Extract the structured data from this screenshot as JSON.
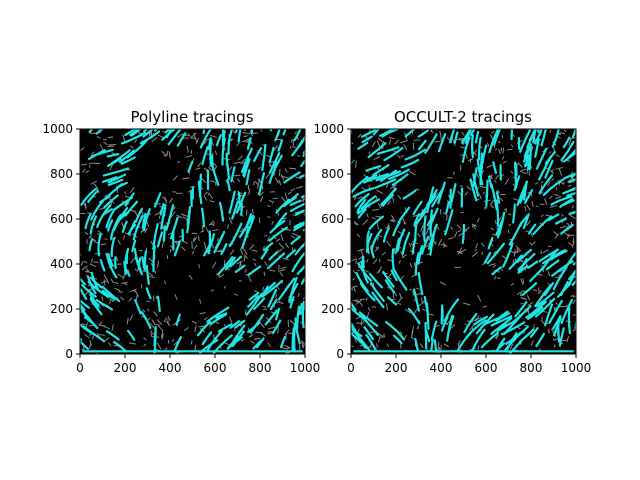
{
  "chart_data": [
    {
      "type": "image",
      "title": "Polyline tracings",
      "xlim": [
        0,
        1000
      ],
      "ylim": [
        0,
        1000
      ],
      "xticks": [
        0,
        200,
        400,
        600,
        800,
        1000
      ],
      "yticks": [
        0,
        200,
        400,
        600,
        800,
        1000
      ],
      "background_color": "#000000",
      "trace_color": "#1fe5e5",
      "underlay_color": "#8c8c8c",
      "seed": 11
    },
    {
      "type": "image",
      "title": "OCCULT-2 tracings",
      "xlim": [
        0,
        1000
      ],
      "ylim": [
        0,
        1000
      ],
      "xticks": [
        0,
        200,
        400,
        600,
        800,
        1000
      ],
      "yticks": [
        0,
        200,
        400,
        600,
        800,
        1000
      ],
      "background_color": "#000000",
      "trace_color": "#1fe5e5",
      "underlay_color": "#8c8c8c",
      "seed": 29
    }
  ]
}
